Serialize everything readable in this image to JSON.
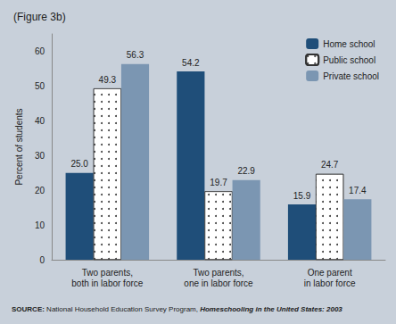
{
  "chart_data": {
    "type": "bar",
    "title": "(Figure 3b)",
    "annotations": [
      "SOURCE:",
      " National Household Education Survey Program, ",
      "Homeschooling in the United States: 2003"
    ],
    "categories": [
      "Two parents,\nboth in labor force",
      "Two parents,\none in labor force",
      "One parent\nin labor force"
    ],
    "series": [
      {
        "name": "Home school",
        "color": "#1f4e79",
        "values": [
          25.0,
          54.2,
          15.9
        ],
        "value_labels": [
          "25.0",
          "54.2",
          "15.9"
        ]
      },
      {
        "name": "Public school",
        "color": "#ffffff",
        "values": [
          49.3,
          19.7,
          24.7
        ],
        "value_labels": [
          "49.3",
          "19.7",
          "24.7"
        ]
      },
      {
        "name": "Private school",
        "color": "#7b96b2",
        "values": [
          56.3,
          22.9,
          17.4
        ],
        "value_labels": [
          "56.3",
          "22.9",
          "17.4"
        ]
      }
    ],
    "ylabel": "Percent of students",
    "ylim": [
      0,
      65
    ],
    "yticks": [
      0,
      10,
      20,
      30,
      40,
      50,
      60
    ],
    "grid": false,
    "legend": "upper right",
    "data_labels": true
  }
}
